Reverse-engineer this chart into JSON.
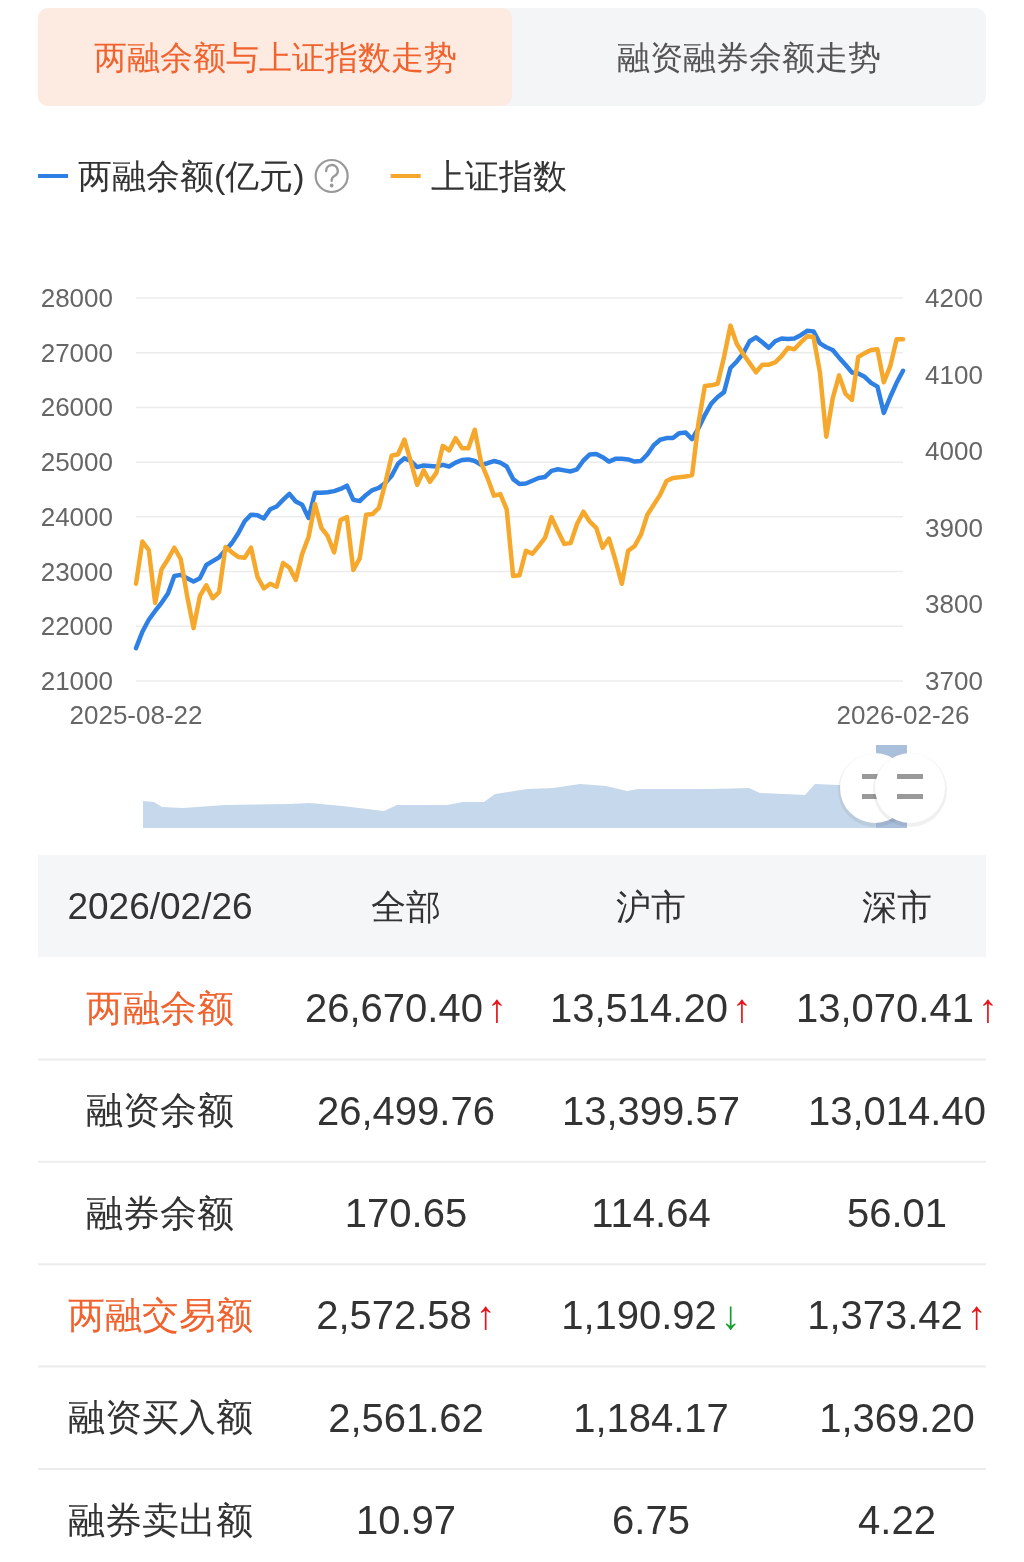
{
  "chart_data": [
    {
      "type": "line",
      "title": "两融余额与上证指数走势",
      "annotations": [
        "融资融券余额走势"
      ],
      "categories": [
        "2025-08-22",
        null,
        null,
        null,
        null,
        null,
        null,
        null,
        null,
        null,
        null,
        null,
        null,
        null,
        null,
        null,
        null,
        null,
        null,
        null,
        null,
        null,
        null,
        null,
        null,
        null,
        null,
        null,
        null,
        null,
        null,
        null,
        null,
        null,
        null,
        null,
        null,
        null,
        null,
        null,
        null,
        null,
        null,
        null,
        null,
        null,
        null,
        null,
        null,
        null,
        null,
        null,
        null,
        null,
        null,
        null,
        null,
        null,
        null,
        null,
        null,
        null,
        null,
        null,
        null,
        null,
        null,
        null,
        null,
        null,
        null,
        null,
        null,
        null,
        null,
        null,
        null,
        null,
        null,
        null,
        null,
        null,
        null,
        null,
        null,
        null,
        null,
        null,
        null,
        null,
        null,
        null,
        null,
        null,
        null,
        null,
        null,
        null,
        null,
        null,
        null,
        null,
        null,
        null,
        null,
        null,
        null,
        null,
        null,
        null,
        null,
        null,
        null,
        null,
        null,
        null,
        null,
        null,
        null,
        null,
        "2026-02-26"
      ],
      "series": [
        {
          "name": "两融余额(亿元)",
          "color": "#2f80e4",
          "values": [
            21600,
            21900,
            22120,
            22280,
            22430,
            22600,
            22920,
            22940,
            22880,
            22820,
            22880,
            23120,
            23190,
            23260,
            23390,
            23520,
            23700,
            23920,
            24040,
            24030,
            23970,
            24140,
            24190,
            24310,
            24420,
            24280,
            24220,
            23980,
            24440,
            24440,
            24450,
            24470,
            24510,
            24570,
            24310,
            24290,
            24400,
            24490,
            24530,
            24620,
            24750,
            24970,
            25070,
            25020,
            24910,
            24940,
            24930,
            24920,
            24950,
            24920,
            24990,
            25040,
            25050,
            25020,
            24950,
            24980,
            25020,
            24990,
            24920,
            24690,
            24600,
            24610,
            24660,
            24710,
            24730,
            24840,
            24870,
            24850,
            24830,
            24870,
            25030,
            25140,
            25150,
            25090,
            25010,
            25060,
            25060,
            25050,
            25010,
            25020,
            25140,
            25310,
            25410,
            25440,
            25440,
            25530,
            25540,
            25420,
            25620,
            25860,
            26070,
            26190,
            26280,
            26720,
            26840,
            26990,
            27210,
            27280,
            27190,
            27090,
            27210,
            27260,
            27250,
            27260,
            27320,
            27400,
            27390,
            27170,
            27100,
            27050,
            26910,
            26780,
            26640,
            26620,
            26560,
            26450,
            26380,
            25900,
            26190,
            26450,
            26670
          ]
        },
        {
          "name": "上证指数",
          "color": "#f6a82c",
          "axis": "y2",
          "values": [
            3827,
            3882,
            3871,
            3802,
            3846,
            3859,
            3874,
            3859,
            3811,
            3769,
            3811,
            3825,
            3808,
            3816,
            3875,
            3868,
            3862,
            3861,
            3874,
            3836,
            3821,
            3827,
            3823,
            3854,
            3848,
            3832,
            3866,
            3888,
            3931,
            3900,
            3889,
            3868,
            3910,
            3914,
            3845,
            3860,
            3917,
            3918,
            3926,
            3958,
            3994,
            3996,
            4015,
            3986,
            3956,
            3975,
            3960,
            3972,
            4007,
            4001,
            4017,
            4004,
            4004,
            4028,
            3985,
            3965,
            3942,
            3944,
            3924,
            3837,
            3838,
            3870,
            3866,
            3876,
            3887,
            3914,
            3896,
            3879,
            3880,
            3905,
            3921,
            3908,
            3900,
            3874,
            3886,
            3858,
            3827,
            3870,
            3876,
            3891,
            3917,
            3930,
            3943,
            3961,
            3965,
            3966,
            3967,
            3969,
            4037,
            4085,
            4086,
            4088,
            4123,
            4164,
            4140,
            4127,
            4115,
            4103,
            4113,
            4113,
            4116,
            4124,
            4135,
            4133,
            4142,
            4150,
            4149,
            4103,
            4019,
            4069,
            4099,
            4075,
            4067,
            4123,
            4128,
            4132,
            4133,
            4090,
            4111,
            4146,
            4146
          ]
        }
      ],
      "ylim": [
        21000,
        28000
      ],
      "yticks": [
        21000,
        22000,
        23000,
        24000,
        25000,
        26000,
        27000,
        28000
      ],
      "y2lim": [
        3700,
        4200
      ],
      "y2ticks": [
        3700,
        3800,
        3900,
        4000,
        4100,
        4200
      ],
      "grid": "y",
      "legend": "top left"
    },
    {
      "type": "other",
      "title": "2026/02/26",
      "categories": [
        "全部",
        "沪市",
        "深市"
      ],
      "series": [
        {
          "name": "两融余额",
          "color": "#f0622e",
          "values": [
            26670.4,
            13514.2,
            13070.41
          ],
          "value_labels": [
            "26,670.40↑",
            "13,514.20↑",
            "13,070.41↑"
          ],
          "colors": [
            "#e8141b",
            "#e8141b",
            "#e8141b"
          ]
        },
        {
          "name": "融资余额",
          "color": "#333333",
          "values": [
            26499.76,
            13399.57,
            13014.4
          ],
          "value_labels": [
            "26,499.76",
            "13,399.57",
            "13,014.40"
          ]
        },
        {
          "name": "融券余额",
          "color": "#333333",
          "values": [
            170.65,
            114.64,
            56.01
          ],
          "value_labels": [
            "170.65",
            "114.64",
            "56.01"
          ]
        },
        {
          "name": "两融交易额",
          "color": "#f0622e",
          "values": [
            2572.58,
            1190.92,
            1373.42
          ],
          "value_labels": [
            "2,572.58↑",
            "1,190.92↓",
            "1,373.42↑"
          ],
          "colors": [
            "#e8141b",
            "#17a02f",
            "#e8141b"
          ]
        },
        {
          "name": "融资买入额",
          "color": "#333333",
          "values": [
            2561.62,
            1184.17,
            1369.2
          ],
          "value_labels": [
            "2,561.62",
            "1,184.17",
            "1,369.20"
          ]
        },
        {
          "name": "融券卖出额",
          "color": "#333333",
          "values": [
            10.97,
            6.75,
            4.22
          ],
          "value_labels": [
            "10.97",
            "6.75",
            "4.22"
          ]
        }
      ]
    }
  ]
}
